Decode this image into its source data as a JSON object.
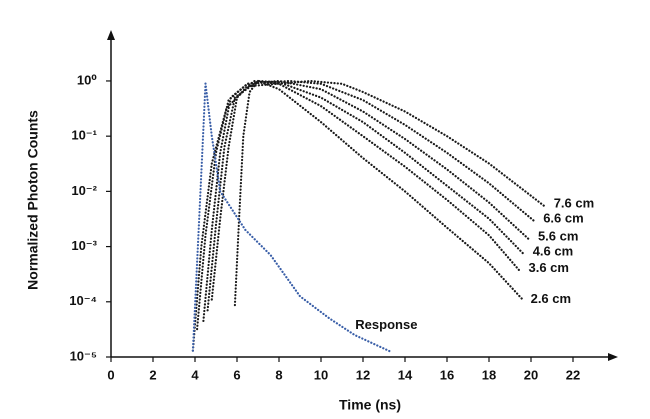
{
  "chart_data": {
    "type": "line",
    "x_label": "Time (ns)",
    "y_label": "Normalized Photon Counts",
    "xlim": [
      0,
      24
    ],
    "xticks": [
      0,
      2,
      4,
      6,
      8,
      10,
      12,
      14,
      16,
      18,
      20,
      22
    ],
    "ylim": [
      1e-05,
      6
    ],
    "yscale": "log",
    "yticks": [
      {
        "value": 1e-05,
        "label": "10⁻⁵"
      },
      {
        "value": 0.0001,
        "label": "10⁻⁴"
      },
      {
        "value": 0.001,
        "label": "10⁻³"
      },
      {
        "value": 0.01,
        "label": "10⁻²"
      },
      {
        "value": 0.1,
        "label": "10⁻¹"
      },
      {
        "value": 1,
        "label": "10⁰"
      }
    ],
    "grid": false,
    "series": [
      {
        "name": "2.6 cm",
        "color": "#1a1a1a",
        "x": [
          5.9,
          6.1,
          6.3,
          6.6,
          7.0,
          8,
          10,
          12,
          14,
          16,
          18,
          19.6
        ],
        "values": [
          8.7e-05,
          0.0032,
          0.1,
          0.63,
          1,
          0.71,
          0.18,
          0.04,
          0.01,
          0.0022,
          0.0005,
          0.00011
        ]
      },
      {
        "name": "3.6 cm",
        "color": "#1a1a1a",
        "x": [
          4.8,
          5.2,
          5.6,
          6.0,
          6.8,
          8,
          10,
          12,
          14,
          16,
          18,
          19.5
        ],
        "values": [
          0.00011,
          0.0032,
          0.063,
          0.5,
          1,
          0.89,
          0.35,
          0.1,
          0.028,
          0.007,
          0.0016,
          0.00035
        ]
      },
      {
        "name": "4.6 cm",
        "color": "#1a1a1a",
        "x": [
          4.6,
          5.0,
          5.4,
          5.9,
          7.0,
          8,
          10,
          12,
          14,
          16,
          18,
          19.7
        ],
        "values": [
          7e-05,
          0.0025,
          0.063,
          0.5,
          1,
          0.95,
          0.5,
          0.18,
          0.05,
          0.0126,
          0.0032,
          0.0007
        ]
      },
      {
        "name": "5.6 cm",
        "color": "#1a1a1a",
        "x": [
          4.4,
          4.8,
          5.2,
          5.7,
          6.5,
          8,
          10,
          12,
          14,
          16,
          18,
          19.95
        ],
        "values": [
          4.5e-05,
          0.002,
          0.05,
          0.5,
          0.89,
          1,
          0.71,
          0.28,
          0.089,
          0.025,
          0.0063,
          0.0013
        ]
      },
      {
        "name": "6.6 cm",
        "color": "#1a1a1a",
        "x": [
          4.1,
          4.5,
          5.0,
          5.6,
          6.5,
          8.5,
          10,
          12,
          14,
          16,
          18,
          20.2
        ],
        "values": [
          3.2e-05,
          0.0016,
          0.05,
          0.45,
          0.89,
          1,
          0.89,
          0.45,
          0.16,
          0.05,
          0.014,
          0.0028
        ]
      },
      {
        "name": "7.6 cm",
        "color": "#1a1a1a",
        "x": [
          3.9,
          4.3,
          4.8,
          5.5,
          6.5,
          9.5,
          11,
          12,
          14,
          16,
          18,
          20.7
        ],
        "values": [
          1.3e-05,
          0.001,
          0.032,
          0.32,
          0.8,
          1,
          0.89,
          0.63,
          0.28,
          0.1,
          0.032,
          0.0052
        ]
      },
      {
        "name": "Response",
        "color": "#3a5fa8",
        "x": [
          3.9,
          4.2,
          4.5,
          4.8,
          5.2,
          6.4,
          7.6,
          9.0,
          10.4,
          11.6,
          13.3
        ],
        "values": [
          1.3e-05,
          0.0032,
          0.9,
          0.1,
          0.01,
          0.002,
          0.0007,
          0.000126,
          5e-05,
          2.5e-05,
          1.26e-05
        ]
      }
    ]
  }
}
